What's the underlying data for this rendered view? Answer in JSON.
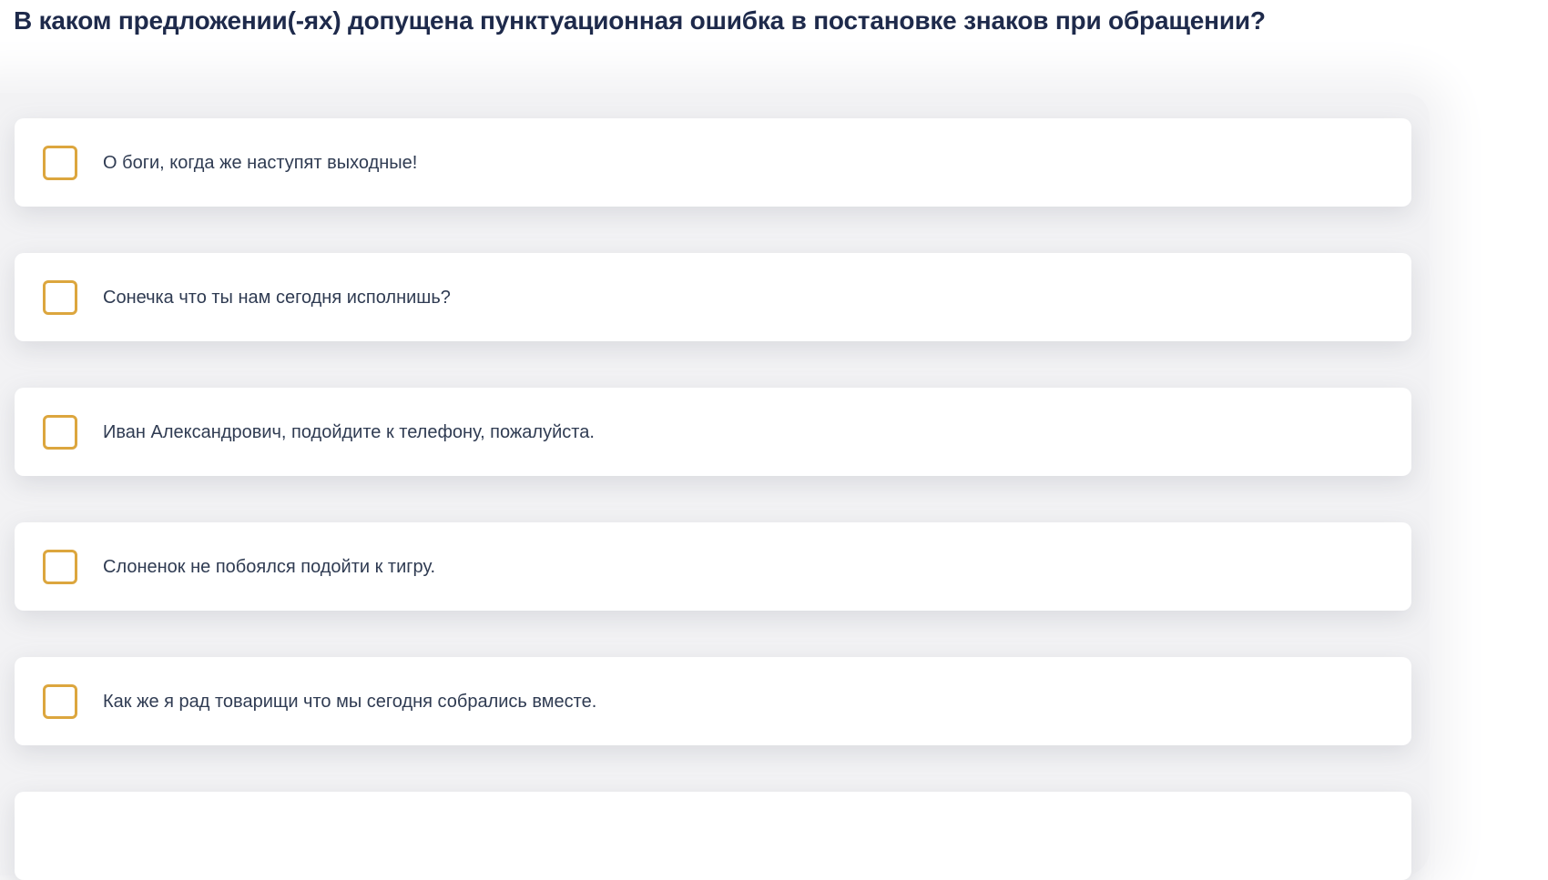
{
  "page": {
    "title": "В каком предложении(-ях) допущена пунктуационная ошибка в постановке знаков при обращении?"
  },
  "colors": {
    "title_text": "#1E2A4B",
    "option_text": "#2F3B52",
    "checkbox_border": "#DCA63E",
    "card_background": "#FFFFFF",
    "panel_background": "#F2F2F4",
    "page_background": "#FFFFFF"
  },
  "options": [
    {
      "label": "О боги, когда же наступят выходные!",
      "checked": false
    },
    {
      "label": "Сонечка что ты нам сегодня исполнишь?",
      "checked": false
    },
    {
      "label": "Иван Александрович, подойдите к телефону, пожалуйста.",
      "checked": false
    },
    {
      "label": "Слоненок не побоялся подойти к тигру.",
      "checked": false
    },
    {
      "label": "Как же я рад товарищи что мы сегодня собрались вместе.",
      "checked": false
    }
  ]
}
